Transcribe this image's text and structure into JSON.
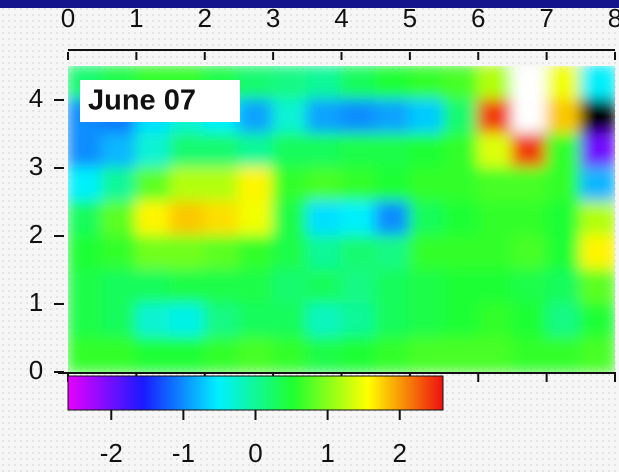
{
  "chart_data": {
    "type": "heatmap",
    "label": "June 07",
    "x": [
      0.25,
      0.75,
      1.25,
      1.75,
      2.25,
      2.75,
      3.25,
      3.75,
      4.25,
      4.75,
      5.25,
      5.75,
      6.25,
      6.75,
      7.25,
      7.75
    ],
    "y": [
      4.25,
      3.75,
      3.25,
      2.75,
      2.25,
      1.75,
      1.25,
      0.75,
      0.25
    ],
    "z": [
      [
        0.2,
        0.4,
        0.6,
        0.6,
        0.4,
        0.2,
        0.1,
        0.0,
        0.3,
        0.5,
        0.6,
        0.7,
        1.2,
        3.0,
        1.5,
        -0.5
      ],
      [
        -1.0,
        -1.1,
        -0.6,
        -0.3,
        -0.5,
        -0.9,
        -0.3,
        -0.9,
        -1.0,
        -0.9,
        -0.7,
        0.2,
        2.4,
        3.0,
        1.8,
        -3.0
      ],
      [
        -1.0,
        -0.8,
        -0.3,
        0.2,
        0.2,
        0.0,
        0.3,
        0.3,
        0.4,
        0.4,
        0.5,
        0.6,
        1.4,
        2.4,
        0.6,
        -2.0
      ],
      [
        -0.5,
        0.0,
        0.8,
        1.2,
        1.2,
        1.6,
        0.6,
        0.7,
        0.6,
        0.5,
        0.6,
        0.6,
        0.7,
        0.7,
        0.6,
        -0.8
      ],
      [
        0.3,
        0.8,
        1.6,
        1.8,
        1.7,
        1.5,
        0.4,
        -0.6,
        -0.5,
        -1.0,
        0.3,
        0.5,
        0.6,
        0.6,
        0.5,
        1.2
      ],
      [
        0.5,
        0.6,
        0.9,
        0.9,
        0.8,
        0.6,
        0.4,
        0.0,
        0.2,
        0.1,
        0.6,
        0.6,
        0.6,
        0.7,
        0.5,
        1.6
      ],
      [
        0.4,
        0.3,
        0.3,
        0.4,
        0.4,
        0.4,
        0.2,
        0.3,
        0.1,
        0.3,
        0.4,
        0.5,
        0.5,
        0.4,
        0.3,
        0.8
      ],
      [
        0.4,
        0.3,
        -0.3,
        -0.4,
        0.1,
        0.3,
        0.3,
        -0.2,
        0.0,
        0.3,
        0.4,
        0.5,
        0.6,
        0.5,
        0.1,
        0.5
      ],
      [
        0.6,
        0.6,
        0.5,
        0.5,
        0.6,
        0.7,
        0.6,
        0.4,
        0.5,
        0.6,
        0.7,
        0.7,
        0.7,
        0.6,
        0.6,
        0.7
      ]
    ],
    "xlim": [
      0,
      8
    ],
    "ylim": [
      0,
      4.5
    ],
    "xticks": [
      0,
      1,
      2,
      3,
      4,
      5,
      6,
      7,
      8
    ],
    "yticks": [
      0,
      1,
      2,
      3,
      4
    ],
    "clim": [
      -2.6,
      2.6
    ],
    "cticks": [
      -2,
      -1,
      0,
      1,
      2
    ],
    "colors": [
      "#e600ff",
      "#1a1aff",
      "#00f0ff",
      "#20ff30",
      "#ffff00",
      "#ee1010"
    ],
    "over_color": "#ffffff",
    "under_color": "#000000"
  }
}
